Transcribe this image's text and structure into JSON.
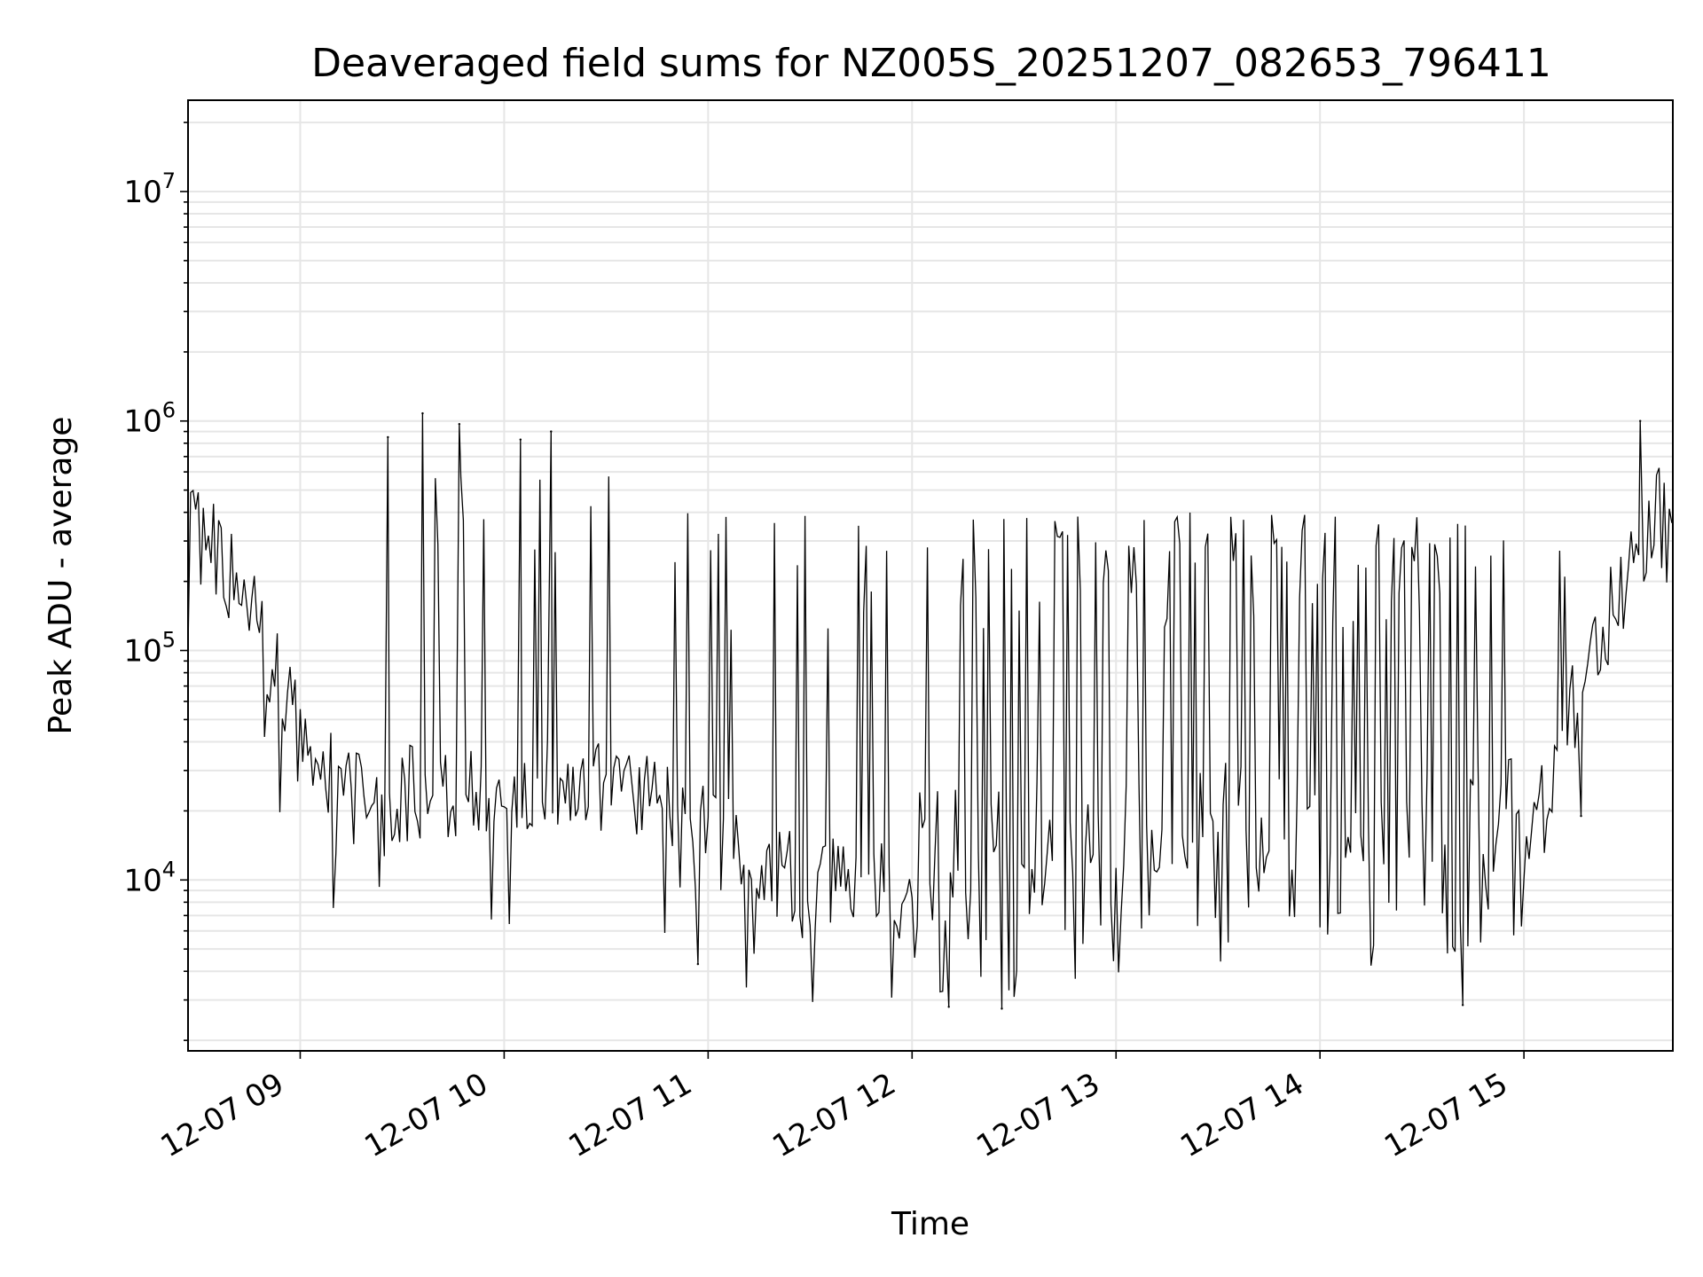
{
  "chart_data": {
    "type": "line",
    "title": "Deaveraged field sums for NZ005S_20251207_082653_796411",
    "xlabel": "Time",
    "ylabel": "Peak ADU - average",
    "yscale": "log",
    "ylim": [
      1800,
      25000000
    ],
    "xlim_hours": [
      8.45,
      15.73
    ],
    "grid": true,
    "x_ticks": [
      {
        "hour": 9,
        "label": "12-07 09"
      },
      {
        "hour": 10,
        "label": "12-07 10"
      },
      {
        "hour": 11,
        "label": "12-07 11"
      },
      {
        "hour": 12,
        "label": "12-07 12"
      },
      {
        "hour": 13,
        "label": "12-07 13"
      },
      {
        "hour": 14,
        "label": "12-07 14"
      },
      {
        "hour": 15,
        "label": "12-07 15"
      }
    ],
    "y_ticks": [
      {
        "value": 10000,
        "base": "10",
        "exp": "4"
      },
      {
        "value": 100000,
        "base": "10",
        "exp": "5"
      },
      {
        "value": 1000000,
        "base": "10",
        "exp": "6"
      },
      {
        "value": 10000000,
        "base": "10",
        "exp": "7"
      }
    ],
    "baseline_envelope": {
      "hours": [
        8.45,
        8.6,
        8.8,
        8.95,
        9.1,
        9.3,
        9.5,
        9.8,
        10.1,
        10.4,
        10.7,
        11.0,
        11.3,
        11.7,
        12.0,
        12.3,
        12.6,
        13.0,
        13.3,
        13.6,
        13.9,
        14.2,
        14.5,
        14.8,
        15.0,
        15.15,
        15.3,
        15.5,
        15.65,
        15.73
      ],
      "values": [
        380000,
        250000,
        120000,
        60000,
        30000,
        22000,
        24000,
        23000,
        26000,
        27000,
        24000,
        16000,
        11000,
        9500,
        8500,
        9000,
        9500,
        10000,
        12000,
        12000,
        12000,
        12000,
        11000,
        12000,
        16000,
        30000,
        80000,
        200000,
        450000,
        250000
      ]
    },
    "notable_spikes": [
      {
        "hour": 9.43,
        "value": 850000
      },
      {
        "hour": 9.6,
        "value": 1080000
      },
      {
        "hour": 9.78,
        "value": 970000
      },
      {
        "hour": 10.08,
        "value": 830000
      },
      {
        "hour": 10.23,
        "value": 900000
      },
      {
        "hour": 15.57,
        "value": 1000000
      }
    ],
    "notable_dips": [
      {
        "hour": 10.95,
        "value": 4300
      },
      {
        "hour": 12.18,
        "value": 2800
      },
      {
        "hour": 12.44,
        "value": 2750
      },
      {
        "hour": 14.7,
        "value": 2850
      },
      {
        "hour": 15.28,
        "value": 19000
      }
    ],
    "interval_minutes": 0.75,
    "noise_seed": 796411
  }
}
